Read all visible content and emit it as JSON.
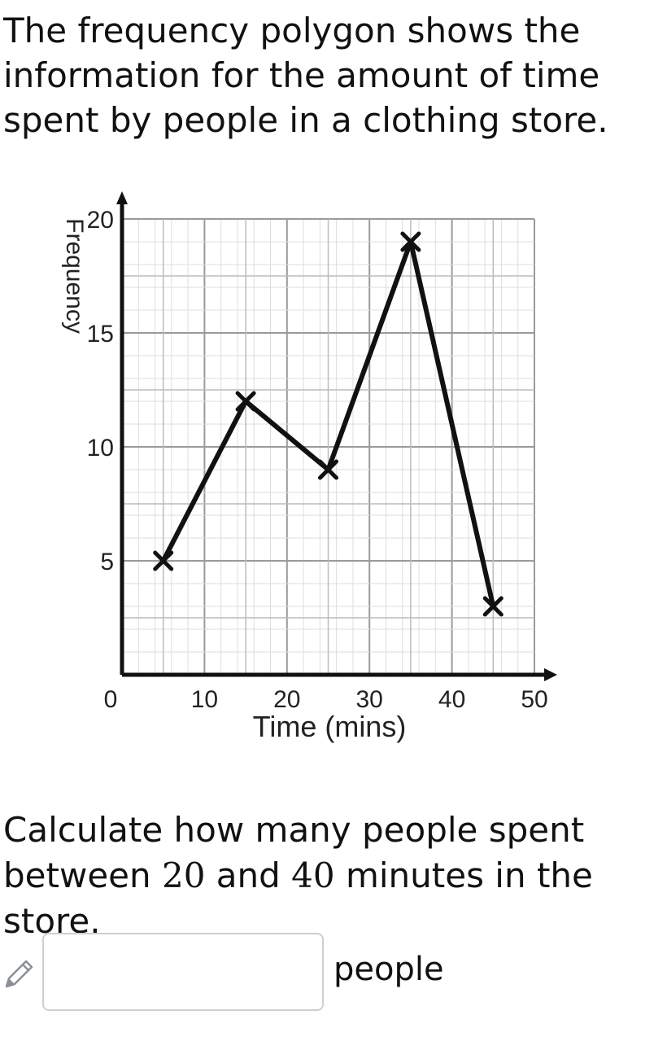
{
  "intro_text": "The frequency polygon shows the information for the amount of time spent by people in a clothing store.",
  "chart_data": {
    "type": "line",
    "xlabel": "Time (mins)",
    "ylabel": "Frequency",
    "xlim": [
      0,
      50
    ],
    "ylim": [
      0,
      20
    ],
    "x_ticks": [
      "0",
      "10",
      "20",
      "30",
      "40",
      "50"
    ],
    "y_ticks": [
      "5",
      "10",
      "15",
      "20"
    ],
    "grid": true,
    "marker": "x",
    "x": [
      5,
      15,
      25,
      35,
      45
    ],
    "y": [
      5,
      12,
      9,
      19,
      3
    ]
  },
  "question": {
    "part1": "Calculate how many people spent between ",
    "num_a": "20",
    "part2": " and ",
    "num_b": "40",
    "part3": " minutes in the store."
  },
  "answer": {
    "value": "",
    "unit_label": "people",
    "icon": "pencil-icon"
  }
}
